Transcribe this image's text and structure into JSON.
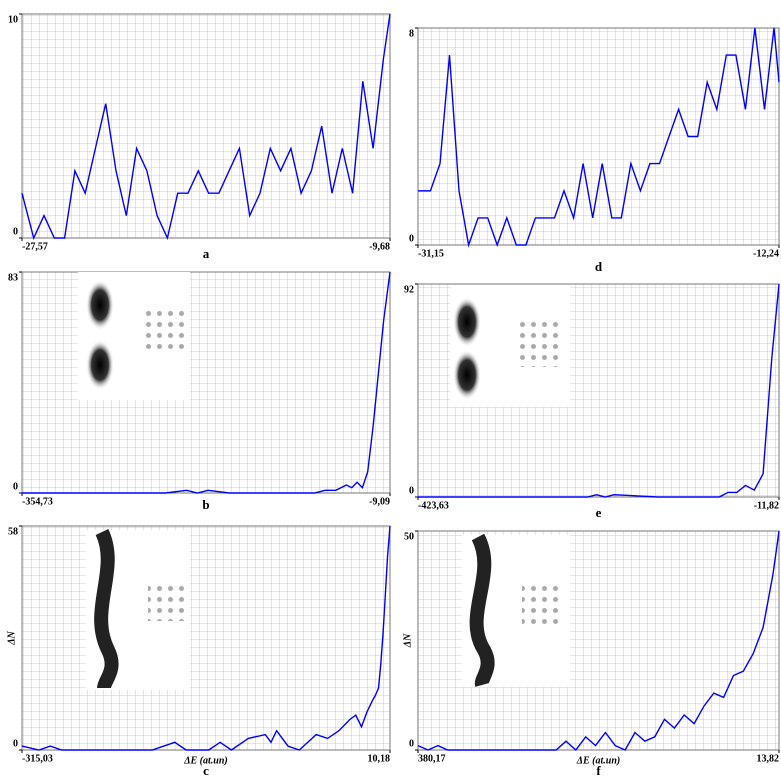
{
  "chart_data": [
    {
      "type": "line",
      "label": "a",
      "xlim": [
        -27.57,
        -9.68
      ],
      "xticks": [
        {
          "value": -27.57,
          "label": "-27,57"
        },
        {
          "value": -9.68,
          "label": "-9,68"
        }
      ],
      "ylim": [
        0,
        10
      ],
      "yticks": [
        0,
        10
      ],
      "grid": true,
      "x": [
        -27.57,
        -27,
        -26.5,
        -26,
        -25.5,
        -25,
        -24.5,
        -24,
        -23.5,
        -23,
        -22.5,
        -22,
        -21.5,
        -21,
        -20.5,
        -20,
        -19.5,
        -19,
        -18.5,
        -18,
        -17.5,
        -17,
        -16.5,
        -16,
        -15.5,
        -15,
        -14.5,
        -14,
        -13.5,
        -13,
        -12.5,
        -12,
        -11.5,
        -11,
        -10.5,
        -10,
        -9.68
      ],
      "series": [
        {
          "color": "#0000ff",
          "values": [
            2,
            0,
            1,
            0,
            0,
            3,
            2,
            4,
            6,
            3,
            1,
            4,
            3,
            1,
            0,
            2,
            2,
            3,
            2,
            2,
            3,
            4,
            1,
            2,
            4,
            3,
            4,
            2,
            3,
            5,
            2,
            4,
            2,
            7,
            4,
            8,
            10
          ]
        }
      ]
    },
    {
      "type": "line",
      "label": "d",
      "xlim": [
        -31.15,
        -12.24
      ],
      "xticks": [
        {
          "value": -31.15,
          "label": "-31,15"
        },
        {
          "value": -12.24,
          "label": "-12,24"
        }
      ],
      "ylim": [
        0,
        8
      ],
      "yticks": [
        0,
        8
      ],
      "grid": true,
      "x": [
        -31.15,
        -30.5,
        -30,
        -29.5,
        -29,
        -28.5,
        -28,
        -27.5,
        -27,
        -26.5,
        -26,
        -25.5,
        -25,
        -24.5,
        -24,
        -23.5,
        -23,
        -22.5,
        -22,
        -21.5,
        -21,
        -20.5,
        -20,
        -19.5,
        -19,
        -18.5,
        -18,
        -17.5,
        -17,
        -16.5,
        -16,
        -15.5,
        -15,
        -14.5,
        -14,
        -13.5,
        -13,
        -12.5,
        -12.24
      ],
      "series": [
        {
          "color": "#0000ff",
          "values": [
            2,
            2,
            3,
            7,
            2,
            0,
            1,
            1,
            0,
            1,
            0,
            0,
            1,
            1,
            1,
            2,
            1,
            3,
            1,
            3,
            1,
            1,
            3,
            2,
            3,
            3,
            4,
            5,
            4,
            4,
            6,
            5,
            7,
            7,
            5,
            8,
            5,
            8,
            6
          ]
        }
      ]
    },
    {
      "type": "line",
      "label": "b",
      "xlim": [
        -354.73,
        -9.09
      ],
      "xticks": [
        {
          "value": -354.73,
          "label": "-354,73"
        },
        {
          "value": -9.09,
          "label": "-9,09"
        }
      ],
      "ylim": [
        0,
        83
      ],
      "yticks": [
        0,
        83
      ],
      "grid": true,
      "x": [
        -354.73,
        -340,
        -300,
        -260,
        -220,
        -200,
        -190,
        -180,
        -160,
        -120,
        -100,
        -80,
        -70,
        -60,
        -50,
        -45,
        -40,
        -35,
        -30,
        -25,
        -20,
        -15,
        -9.09
      ],
      "series": [
        {
          "color": "#0000ff",
          "values": [
            0,
            0,
            0,
            0,
            0,
            1,
            0,
            1,
            0,
            0,
            0,
            0,
            1,
            1,
            3,
            2,
            4,
            2,
            8,
            25,
            45,
            65,
            83
          ]
        }
      ]
    },
    {
      "type": "line",
      "label": "e",
      "xlim": [
        -423.63,
        -11.82
      ],
      "xticks": [
        {
          "value": -423.63,
          "label": "-423,63"
        },
        {
          "value": -11.82,
          "label": "-11,82"
        }
      ],
      "ylim": [
        0,
        92
      ],
      "yticks": [
        0,
        92
      ],
      "grid": true,
      "x": [
        -423.63,
        -400,
        -300,
        -230,
        -220,
        -210,
        -200,
        -150,
        -100,
        -80,
        -70,
        -60,
        -50,
        -40,
        -30,
        -20,
        -11.82
      ],
      "series": [
        {
          "color": "#0000ff",
          "values": [
            0,
            0,
            0,
            0,
            1,
            0,
            1,
            0,
            0,
            0,
            2,
            2,
            5,
            3,
            10,
            60,
            92
          ]
        }
      ]
    },
    {
      "type": "line",
      "label": "c",
      "xlabel": "ΔE (at.un)",
      "ylabel": "ΔN",
      "xlim": [
        -315.03,
        10.18
      ],
      "xticks": [
        {
          "value": -315.03,
          "label": "-315,03"
        },
        {
          "value": 10.18,
          "label": "10,18"
        }
      ],
      "ylim": [
        0,
        58
      ],
      "yticks": [
        0,
        58
      ],
      "grid": true,
      "x": [
        -315.03,
        -300,
        -290,
        -280,
        -250,
        -200,
        -180,
        -170,
        -150,
        -140,
        -130,
        -115,
        -100,
        -95,
        -90,
        -80,
        -70,
        -55,
        -45,
        -35,
        -25,
        -20,
        -15,
        -10,
        -5,
        -3,
        0,
        2,
        4,
        6,
        8,
        10.18
      ],
      "series": [
        {
          "color": "#0000ff",
          "values": [
            1,
            0,
            1,
            0,
            0,
            0,
            2,
            0,
            0,
            2,
            0,
            3,
            4,
            2,
            5,
            1,
            0,
            4,
            3,
            5,
            8,
            9,
            6,
            10,
            13,
            14,
            16,
            22,
            30,
            40,
            50,
            58
          ]
        }
      ]
    },
    {
      "type": "line",
      "label": "f",
      "xlabel": "ΔE (at.un)",
      "ylabel": "ΔN",
      "xlim": [
        380.17,
        13.82
      ],
      "xticks": [
        {
          "value": 380.17,
          "label": "380,17"
        },
        {
          "value": 13.82,
          "label": "13,82"
        }
      ],
      "ylim": [
        0,
        50
      ],
      "yticks": [
        0,
        50
      ],
      "grid": true,
      "x": [
        380.17,
        370,
        360,
        350,
        300,
        240,
        230,
        220,
        210,
        200,
        190,
        180,
        170,
        160,
        150,
        140,
        130,
        120,
        110,
        100,
        90,
        80,
        70,
        60,
        50,
        40,
        30,
        20,
        13.82
      ],
      "series": [
        {
          "color": "#0000ff",
          "values": [
            1,
            0,
            1,
            0,
            0,
            0,
            2,
            0,
            3,
            1,
            4,
            1,
            0,
            4,
            2,
            3,
            7,
            5,
            8,
            6,
            10,
            13,
            12,
            17,
            18,
            22,
            28,
            40,
            50
          ]
        }
      ]
    }
  ]
}
